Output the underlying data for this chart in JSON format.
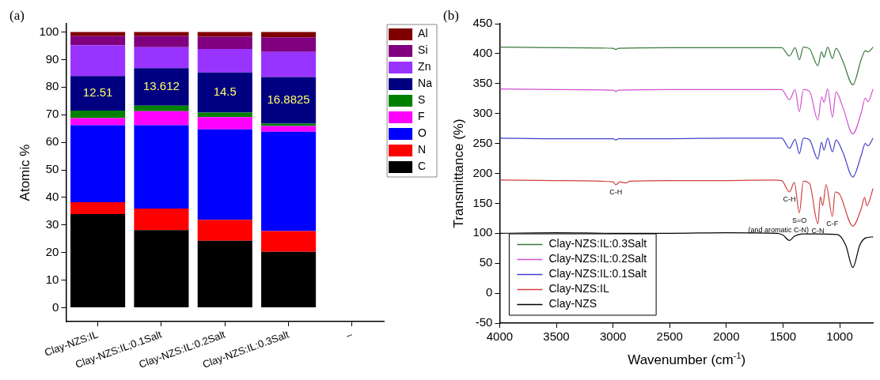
{
  "chart_data": [
    {
      "type": "bar",
      "title": "(a)",
      "stacked": true,
      "ylabel": "Atomic %",
      "categories": [
        "Clay-NZS:IL",
        "Clay-NZS:IL;0.1Salt",
        "Clay-NZS:IL:0.2Salt",
        "Clay-NZS:IL:0.3Salt",
        "–"
      ],
      "series": [
        {
          "name": "C",
          "color": "#000000",
          "values": [
            34,
            28.2,
            24.3,
            20.3,
            null
          ]
        },
        {
          "name": "N",
          "color": "#ff0000",
          "values": [
            4.3,
            7.8,
            7.6,
            7.5,
            null
          ]
        },
        {
          "name": "O",
          "color": "#0000ff",
          "values": [
            27.9,
            30.2,
            32.8,
            36.0,
            null
          ]
        },
        {
          "name": "F",
          "color": "#ff00ff",
          "values": [
            2.6,
            5.1,
            4.4,
            2.1,
            null
          ]
        },
        {
          "name": "S",
          "color": "#008000",
          "values": [
            2.7,
            2.0,
            1.7,
            0.9,
            null
          ]
        },
        {
          "name": "Na",
          "color": "#000080",
          "values": [
            12.51,
            13.612,
            14.5,
            16.8825,
            null
          ],
          "value_labels": [
            "12.51",
            "13.612",
            "14.5",
            "16.8825",
            null
          ]
        },
        {
          "name": "Zn",
          "color": "#9933ff",
          "values": [
            11.2,
            7.6,
            8.5,
            9.1,
            null
          ]
        },
        {
          "name": "Si",
          "color": "#800080",
          "values": [
            3.3,
            4.0,
            4.5,
            5.3,
            null
          ]
        },
        {
          "name": "Al",
          "color": "#800000",
          "values": [
            1.5,
            1.5,
            1.7,
            1.9,
            null
          ]
        }
      ],
      "ylim": [
        -5,
        103
      ],
      "yticks": [
        0,
        10,
        20,
        30,
        40,
        50,
        60,
        70,
        80,
        90,
        100
      ],
      "grid": false,
      "legend": "right"
    },
    {
      "type": "line",
      "title": "(b)",
      "xlabel": "Wavenumber (cm$^{-1}$)",
      "ylabel": "Transmittance (%)",
      "series": [
        {
          "name": "Clay-NZS:IL:0.3Salt",
          "color": "#3a7a3a",
          "x": [
            4000,
            3500,
            3000,
            2975,
            2950,
            2500,
            2000,
            1600,
            1512,
            1443,
            1393,
            1356,
            1320,
            1266,
            1192,
            1160,
            1138,
            1106,
            1064,
            1032,
            971,
            884,
            810,
            774,
            750,
            705
          ],
          "values": [
            411,
            410,
            409,
            407,
            409,
            410,
            410,
            410,
            410,
            396,
            410,
            390,
            411,
            408,
            380,
            403,
            394,
            411,
            392,
            409,
            387,
            348,
            390,
            405,
            403,
            411
          ]
        },
        {
          "name": "Clay-NZS:IL:0.2Salt",
          "color": "#d050d0",
          "x": [
            4000,
            3500,
            3000,
            2975,
            2950,
            2500,
            2000,
            1600,
            1512,
            1443,
            1393,
            1356,
            1320,
            1266,
            1192,
            1160,
            1138,
            1106,
            1064,
            1032,
            971,
            884,
            810,
            774,
            750,
            705
          ],
          "values": [
            341,
            340,
            339,
            337,
            339,
            340,
            340,
            340,
            340,
            323,
            340,
            303,
            340,
            337,
            289,
            328,
            319,
            341,
            294,
            336,
            310,
            266,
            301,
            326,
            320,
            341
          ]
        },
        {
          "name": "Clay-NZS:IL:0.1Salt",
          "color": "#4040d0",
          "x": [
            4000,
            3500,
            3000,
            2975,
            2950,
            2500,
            2000,
            1600,
            1512,
            1443,
            1393,
            1356,
            1320,
            1266,
            1192,
            1160,
            1138,
            1106,
            1064,
            1032,
            971,
            884,
            810,
            774,
            750,
            705
          ],
          "values": [
            259,
            258,
            258,
            256,
            258,
            258,
            259,
            259,
            259,
            242,
            257,
            233,
            259,
            256,
            224,
            252,
            239,
            259,
            236,
            256,
            235,
            194,
            230,
            250,
            246,
            259
          ]
        },
        {
          "name": "Clay-NZS:IL",
          "color": "#d04040",
          "x": [
            4000,
            3500,
            3000,
            2975,
            2940,
            2890,
            2850,
            2500,
            2000,
            1600,
            1512,
            1443,
            1400,
            1356,
            1320,
            1266,
            1192,
            1170,
            1150,
            1120,
            1064,
            1040,
            1000,
            884,
            810,
            780,
            760,
            705
          ],
          "values": [
            189,
            188,
            186,
            181,
            186,
            184,
            187,
            188,
            188,
            189,
            188,
            169,
            185,
            134,
            187,
            183,
            116,
            161,
            146,
            181,
            128,
            169,
            165,
            112,
            141,
            160,
            146,
            175
          ]
        },
        {
          "name": "Clay-NZS",
          "color": "#000000",
          "x": [
            4000,
            3500,
            3000,
            2500,
            2000,
            1550,
            1500,
            1443,
            1400,
            1330,
            1200,
            1020,
            946,
            884,
            823,
            774,
            705
          ],
          "values": [
            100,
            101,
            100,
            100,
            101,
            100,
            97,
            88,
            95,
            99,
            99,
            98,
            80,
            43,
            80,
            92,
            94
          ]
        }
      ],
      "xlim": [
        4000,
        700
      ],
      "xticks": [
        4000,
        3500,
        3000,
        2500,
        2000,
        1500,
        1000
      ],
      "ylim": [
        -50,
        450
      ],
      "yticks": [
        -50,
        0,
        50,
        100,
        150,
        200,
        250,
        300,
        350,
        400,
        450
      ],
      "grid": false,
      "legend": "bottom left",
      "annotations": [
        {
          "text": "C-H",
          "x": 2975,
          "y": 181
        },
        {
          "text": "C-H",
          "x": 1443,
          "y": 169
        },
        {
          "text": "S=O",
          "x": 1356,
          "y": 134
        },
        {
          "text": "(and aromatic C-N)",
          "x": 1356,
          "y": 134
        },
        {
          "text": "C-N",
          "x": 1192,
          "y": 116
        },
        {
          "text": "C-F",
          "x": 1064,
          "y": 128
        }
      ]
    }
  ]
}
